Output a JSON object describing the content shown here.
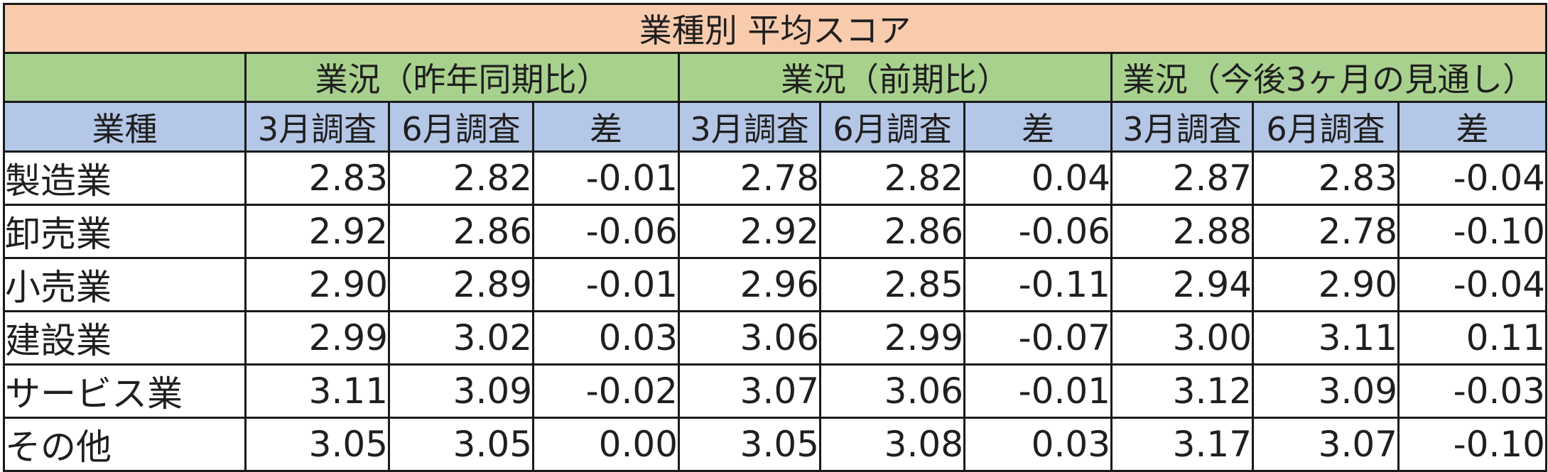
{
  "chart_data": {
    "type": "table",
    "title": "業種別 平均スコア",
    "groups": [
      "業況（昨年同期比）",
      "業況（前期比）",
      "業況（今後3ヶ月の見通し）"
    ],
    "columns": [
      "業種",
      "3月調査",
      "6月調査",
      "差",
      "3月調査",
      "6月調査",
      "差",
      "3月調査",
      "6月調査",
      "差"
    ],
    "rows": [
      {
        "label": "製造業",
        "cells": [
          "2.83",
          "2.82",
          "-0.01",
          "2.78",
          "2.82",
          "0.04",
          "2.87",
          "2.83",
          "-0.04"
        ]
      },
      {
        "label": "卸売業",
        "cells": [
          "2.92",
          "2.86",
          "-0.06",
          "2.92",
          "2.86",
          "-0.06",
          "2.88",
          "2.78",
          "-0.10"
        ]
      },
      {
        "label": "小売業",
        "cells": [
          "2.90",
          "2.89",
          "-0.01",
          "2.96",
          "2.85",
          "-0.11",
          "2.94",
          "2.90",
          "-0.04"
        ]
      },
      {
        "label": "建設業",
        "cells": [
          "2.99",
          "3.02",
          "0.03",
          "3.06",
          "2.99",
          "-0.07",
          "3.00",
          "3.11",
          "0.11"
        ]
      },
      {
        "label": "サービス業",
        "cells": [
          "3.11",
          "3.09",
          "-0.02",
          "3.07",
          "3.06",
          "-0.01",
          "3.12",
          "3.09",
          "-0.03"
        ]
      },
      {
        "label": "その他",
        "cells": [
          "3.05",
          "3.05",
          "0.00",
          "3.05",
          "3.08",
          "0.03",
          "3.17",
          "3.07",
          "-0.10"
        ]
      }
    ],
    "colors": {
      "title_bg": "#f8cbad",
      "group_bg": "#a9d18e",
      "subheader_bg": "#b4c7e7",
      "negative_text": "#ff2020"
    }
  }
}
